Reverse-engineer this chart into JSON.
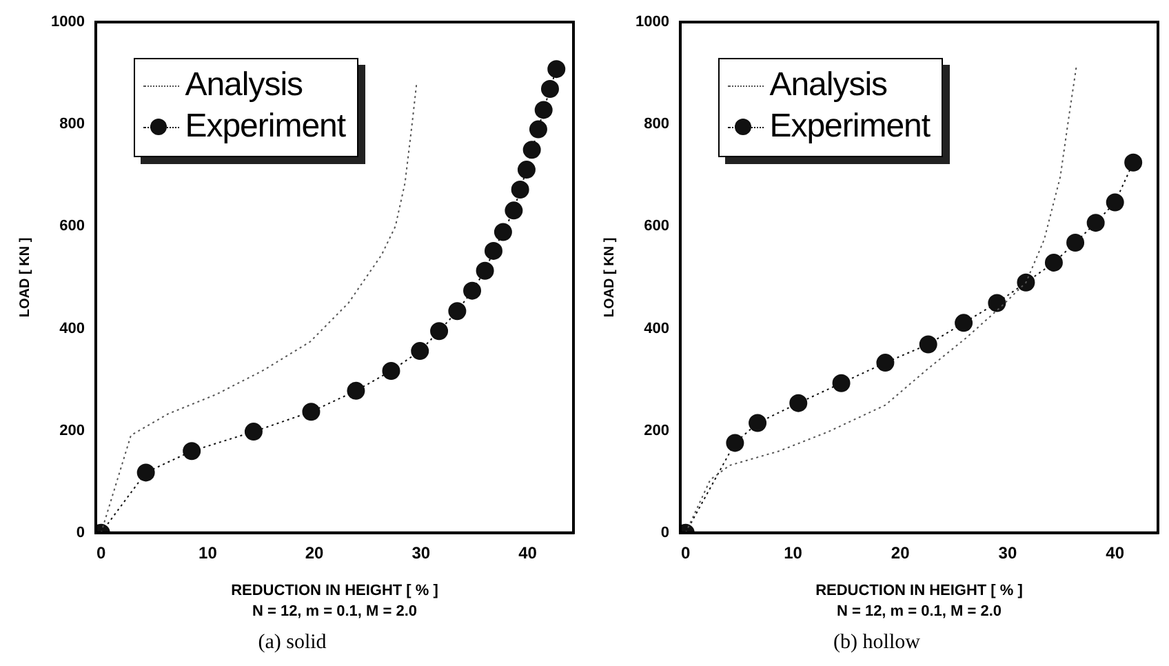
{
  "chart_data": [
    {
      "type": "line",
      "title": "(a) solid",
      "xlabel": "REDUCTION IN HEIGHT [ % ]",
      "ylabel": "LOAD [ KN ]",
      "annotations": [
        "N = 12, m = 0.1, M = 2.0"
      ],
      "xlim": [
        -0.5,
        44.3
      ],
      "xticks": [
        0,
        10,
        20,
        30,
        40
      ],
      "ylim": [
        0,
        1000
      ],
      "yticks": [
        0,
        200,
        400,
        600,
        800,
        1000
      ],
      "grid": false,
      "legend": "top left",
      "series": [
        {
          "name": "Analysis",
          "color": "#555555",
          "marker": "none",
          "line_style": "dotted",
          "x": [
            0,
            2.8,
            6.3,
            10.8,
            15.2,
            19.6,
            23.2,
            26.3,
            27.6,
            28.5,
            29.2,
            29.6
          ],
          "values": [
            0,
            191,
            233,
            271,
            318,
            374,
            450,
            544,
            600,
            685,
            807,
            882
          ]
        },
        {
          "name": "Experiment",
          "color": "#111111",
          "marker": "circle",
          "line_style": "dotted",
          "x": [
            0,
            4.2,
            8.5,
            14.3,
            19.7,
            23.9,
            27.2,
            29.9,
            31.7,
            33.4,
            34.8,
            36.0,
            36.8,
            37.7,
            38.7,
            39.3,
            39.9,
            40.4,
            41.0,
            41.5,
            42.1,
            42.7
          ],
          "values": [
            0,
            118,
            160,
            198,
            237,
            278,
            317,
            356,
            395,
            434,
            474,
            513,
            552,
            589,
            631,
            672,
            711,
            750,
            790,
            828,
            869,
            908
          ]
        }
      ]
    },
    {
      "type": "line",
      "title": "(b) hollow",
      "xlabel": "REDUCTION IN HEIGHT [ % ]",
      "ylabel": "LOAD [ KN ]",
      "annotations": [
        "N = 12, m = 0.1, M = 2.0"
      ],
      "xlim": [
        -0.5,
        44
      ],
      "xticks": [
        0,
        10,
        20,
        30,
        40
      ],
      "ylim": [
        0,
        1000
      ],
      "yticks": [
        0,
        200,
        400,
        600,
        800,
        1000
      ],
      "grid": false,
      "legend": "top left",
      "series": [
        {
          "name": "Analysis",
          "color": "#555555",
          "marker": "none",
          "line_style": "dotted",
          "x": [
            0,
            2.3,
            4.1,
            8.7,
            13.3,
            18.6,
            22.5,
            26.1,
            29.4,
            31.7,
            33.4,
            34.9,
            35.8,
            36.4
          ],
          "values": [
            0,
            104,
            132,
            160,
            198,
            250,
            320,
            381,
            443,
            490,
            574,
            697,
            829,
            913
          ]
        },
        {
          "name": "Experiment",
          "color": "#111111",
          "marker": "circle",
          "line_style": "dotted",
          "x": [
            0,
            4.6,
            6.7,
            10.5,
            14.5,
            18.6,
            22.6,
            25.9,
            29.0,
            31.7,
            34.3,
            36.3,
            38.2,
            40.0,
            41.7
          ],
          "values": [
            0,
            176,
            215,
            254,
            293,
            333,
            369,
            411,
            450,
            490,
            529,
            568,
            607,
            647,
            725
          ]
        }
      ]
    }
  ]
}
